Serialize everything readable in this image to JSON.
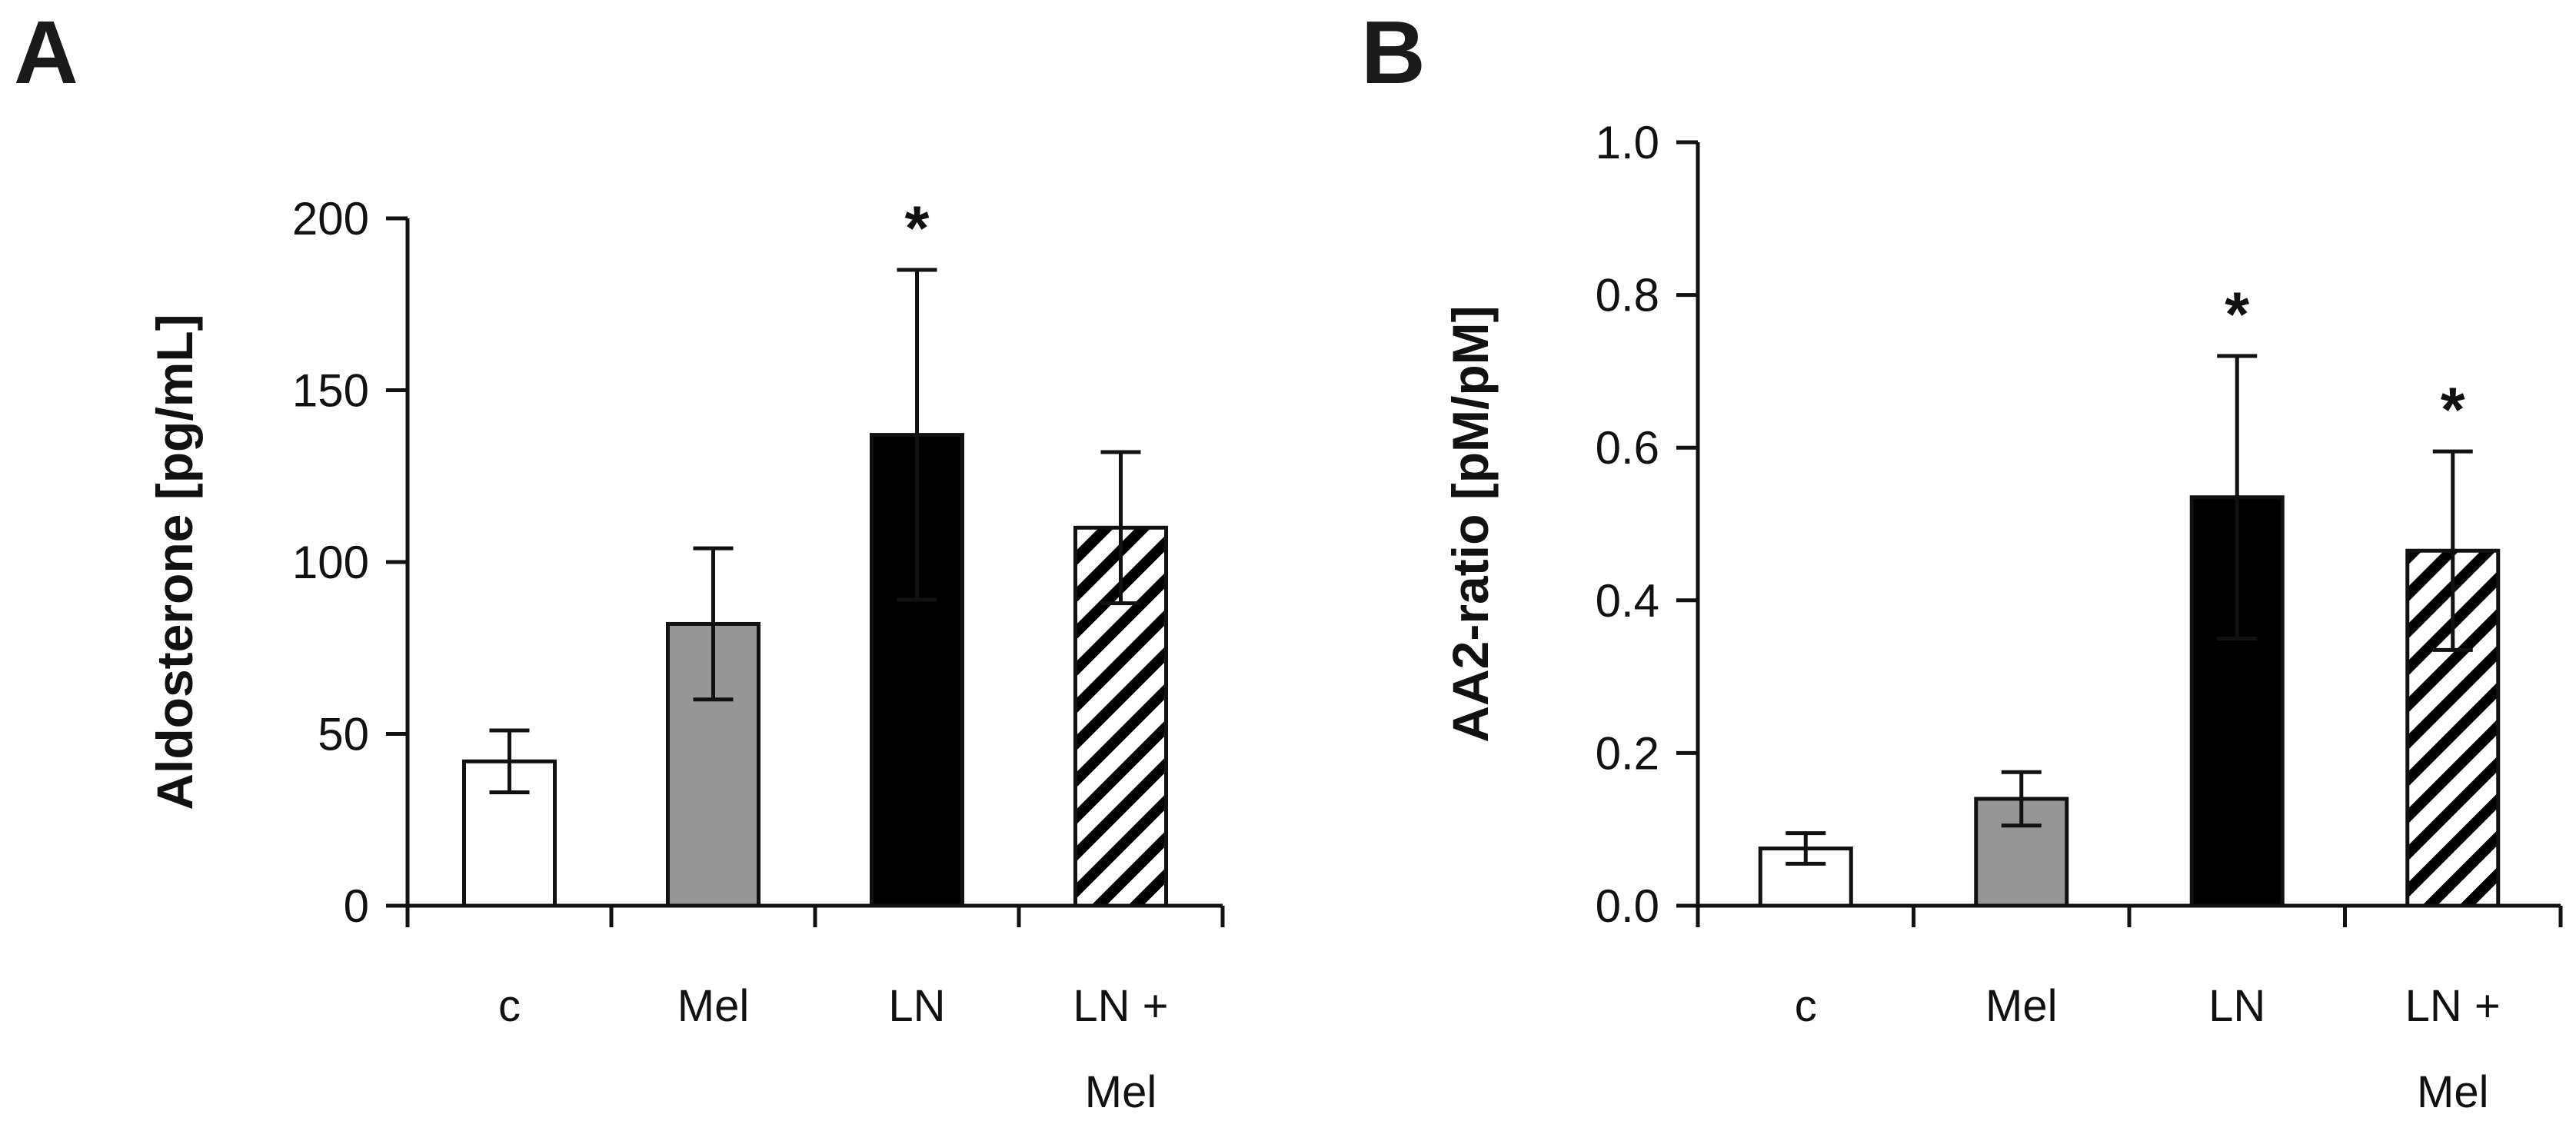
{
  "colors": {
    "axis": "#111111",
    "bar_stroke": "#111111",
    "c": "#ffffff",
    "Mel": "#969696",
    "LN": "#000000",
    "LN_Mel": "hatched"
  },
  "chart_data": [
    {
      "type": "bar",
      "panel_label": "A",
      "title": "",
      "xlabel": "",
      "ylabel": "Aldosterone [pg/mL]",
      "ylim": [
        0,
        200
      ],
      "yticks": [
        0,
        50,
        100,
        150,
        200
      ],
      "ytick_labels": [
        "0",
        "50",
        "100",
        "150",
        "200"
      ],
      "categories": [
        "c",
        "Mel",
        "LN",
        "LN + Mel"
      ],
      "category_lines": [
        [
          "c"
        ],
        [
          "Mel"
        ],
        [
          "LN"
        ],
        [
          "LN +",
          "Mel"
        ]
      ],
      "values": [
        42,
        82,
        137,
        110
      ],
      "errors": [
        9,
        22,
        48,
        22
      ],
      "significance": [
        "",
        "",
        "*",
        ""
      ],
      "fills": [
        "white",
        "gray",
        "black",
        "hatched"
      ],
      "grid": false,
      "legend": "none"
    },
    {
      "type": "bar",
      "panel_label": "B",
      "title": "",
      "xlabel": "",
      "ylabel": "AA2-ratio [pM/pM]",
      "ylim": [
        0,
        1
      ],
      "yticks": [
        0,
        0.2,
        0.4,
        0.6,
        0.8,
        1.0
      ],
      "ytick_labels": [
        "0.0",
        "0.2",
        "0.4",
        "0.6",
        "0.8",
        "1.0"
      ],
      "categories": [
        "c",
        "Mel",
        "LN",
        "LN + Mel"
      ],
      "category_lines": [
        [
          "c"
        ],
        [
          "Mel"
        ],
        [
          "LN"
        ],
        [
          "LN +",
          "Mel"
        ]
      ],
      "values": [
        0.075,
        0.14,
        0.535,
        0.465
      ],
      "errors": [
        0.02,
        0.035,
        0.185,
        0.13
      ],
      "significance": [
        "",
        "",
        "*",
        "*"
      ],
      "fills": [
        "white",
        "gray",
        "black",
        "hatched"
      ],
      "grid": false,
      "legend": "none"
    }
  ]
}
